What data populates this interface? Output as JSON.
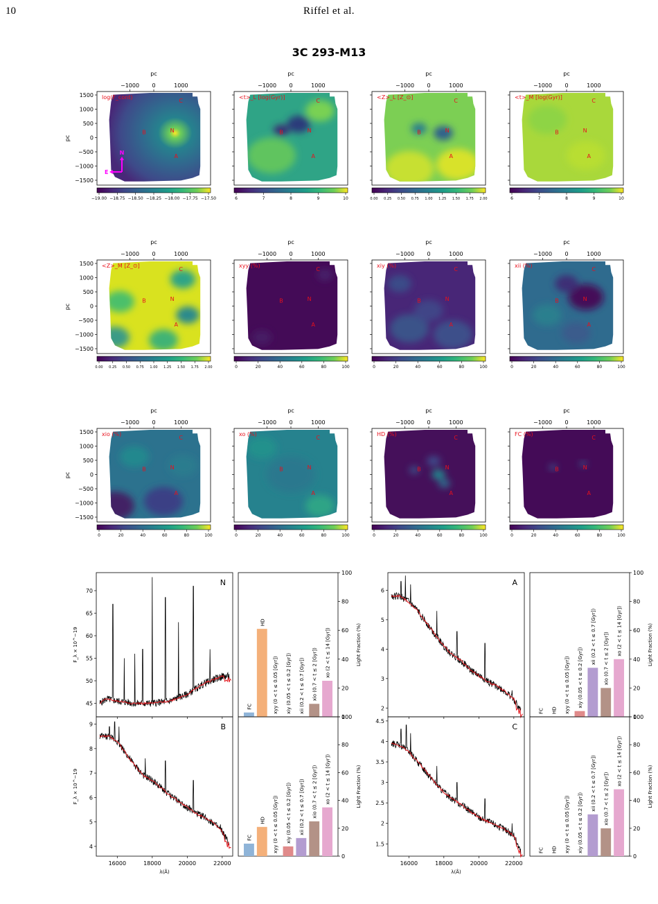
{
  "page": {
    "number": "10",
    "running_head": "Riffel et al.",
    "figure_title": "3C 293-M13"
  },
  "maps": {
    "top_axis_label": "pc",
    "left_axis_label": "pc",
    "top_ticks": [
      "−1000",
      "0",
      "1000"
    ],
    "left_ticks": [
      "1500",
      "1000",
      "500",
      "0",
      "−500",
      "−1000",
      "−1500"
    ],
    "region_labels": [
      "N",
      "B",
      "A",
      "C"
    ],
    "compass": {
      "north": "N",
      "east": "E"
    },
    "label_color": "#e8101c",
    "compass_color": "#ff00ff",
    "panels": [
      {
        "label": "log(F_cont)",
        "cbar_ticks": [
          "−19.00",
          "−18.75",
          "−18.50",
          "−18.25",
          "−18.00",
          "−17.75",
          "−17.50"
        ]
      },
      {
        "label": "<t>_L [log(Gyr)]",
        "cbar_ticks": [
          "6",
          "7",
          "8",
          "9",
          "10"
        ]
      },
      {
        "label": "<Z>_L [Z_⊙]",
        "cbar_ticks": [
          "0.00",
          "0.25",
          "0.50",
          "0.75",
          "1.00",
          "1.25",
          "1.50",
          "1.75",
          "2.00"
        ]
      },
      {
        "label": "<t>_M [log(Gyr)]",
        "cbar_ticks": [
          "6",
          "7",
          "8",
          "9",
          "10"
        ]
      },
      {
        "label": "<Z>_M [Z_⊙]",
        "cbar_ticks": [
          "0.00",
          "0.25",
          "0.50",
          "0.75",
          "1.00",
          "1.25",
          "1.50",
          "1.75",
          "2.00"
        ]
      },
      {
        "label": "xyy (%)",
        "cbar_ticks": [
          "0",
          "20",
          "40",
          "60",
          "80",
          "100"
        ]
      },
      {
        "label": "xiy (%)",
        "cbar_ticks": [
          "0",
          "20",
          "40",
          "60",
          "80",
          "100"
        ]
      },
      {
        "label": "xii (%)",
        "cbar_ticks": [
          "0",
          "20",
          "40",
          "60",
          "80",
          "100"
        ]
      },
      {
        "label": "xio (%)",
        "cbar_ticks": [
          "0",
          "20",
          "40",
          "60",
          "80",
          "100"
        ]
      },
      {
        "label": "xo (%)",
        "cbar_ticks": [
          "0",
          "20",
          "40",
          "60",
          "80",
          "100"
        ]
      },
      {
        "label": "HD (%)",
        "cbar_ticks": [
          "0",
          "20",
          "40",
          "60",
          "80",
          "100"
        ]
      },
      {
        "label": "FC (%)",
        "cbar_ticks": [
          "0",
          "20",
          "40",
          "60",
          "80",
          "100"
        ]
      }
    ]
  },
  "chart_data": [
    {
      "type": "line",
      "panel": "N",
      "xlabel": "λ(Å)",
      "ylabel": "F_λ × 10^−19",
      "xlim": [
        14800,
        22600
      ],
      "ylim": [
        42,
        74
      ],
      "x_ticks": [
        16000,
        18000,
        20000,
        22000
      ],
      "y_ticks": [
        45,
        50,
        55,
        60,
        65,
        70
      ],
      "continuum_points": [
        [
          15000,
          45
        ],
        [
          15400,
          46
        ],
        [
          16000,
          45.5
        ],
        [
          17000,
          45
        ],
        [
          18000,
          45
        ],
        [
          19000,
          45.5
        ],
        [
          20000,
          47
        ],
        [
          21000,
          49.5
        ],
        [
          22000,
          51
        ],
        [
          22400,
          51
        ]
      ],
      "emission_lines": [
        [
          15750,
          67
        ],
        [
          16400,
          55
        ],
        [
          17000,
          56
        ],
        [
          17450,
          57
        ],
        [
          18000,
          73
        ],
        [
          18750,
          68.5
        ],
        [
          19500,
          63
        ],
        [
          20350,
          71
        ],
        [
          21300,
          57
        ],
        [
          21900,
          50
        ]
      ],
      "model_end_wiggle": true
    },
    {
      "type": "bar",
      "panel": "N",
      "ylabel": "Light Fraction (%)",
      "ylim": [
        0,
        100
      ],
      "y_ticks": [
        0,
        20,
        40,
        60,
        80,
        100
      ],
      "categories": [
        "FC",
        "HD",
        "xyy (0 < t ≤ 0.05 [Gyr])",
        "xiy (0.05 < t ≤ 0.2 [Gyr])",
        "xii (0.2 < t ≤ 0.7 [Gyr])",
        "xio (0.7 < t ≤ 2 [Gyr])",
        "xo (2 < t ≤ 14 [Gyr])"
      ],
      "values": [
        3,
        61,
        0,
        0,
        0,
        9,
        25
      ],
      "colors": [
        "#8fb4d8",
        "#f4b07a",
        "#d97f7f",
        "#e08a8a",
        "#b39cd0",
        "#b39287",
        "#e6a8cf"
      ]
    },
    {
      "type": "line",
      "panel": "A",
      "xlabel": "λ(Å)",
      "ylabel": "",
      "xlim": [
        14800,
        22600
      ],
      "ylim": [
        1.7,
        6.6
      ],
      "x_ticks": [
        16000,
        18000,
        20000,
        22000
      ],
      "y_ticks": [
        2,
        3,
        4,
        5,
        6
      ],
      "continuum_points": [
        [
          15000,
          5.8
        ],
        [
          15500,
          5.8
        ],
        [
          16000,
          5.6
        ],
        [
          16500,
          5.3
        ],
        [
          17000,
          4.9
        ],
        [
          17500,
          4.5
        ],
        [
          18000,
          4.1
        ],
        [
          18500,
          3.8
        ],
        [
          19000,
          3.6
        ],
        [
          19500,
          3.3
        ],
        [
          20000,
          3.1
        ],
        [
          20500,
          2.9
        ],
        [
          21000,
          2.75
        ],
        [
          21500,
          2.55
        ],
        [
          22000,
          2.3
        ],
        [
          22400,
          1.9
        ]
      ],
      "emission_lines": [
        [
          15550,
          6.3
        ],
        [
          15800,
          6.5
        ],
        [
          16100,
          6.2
        ],
        [
          17600,
          5.3
        ],
        [
          18750,
          4.6
        ],
        [
          20350,
          4.2
        ],
        [
          21900,
          2.6
        ]
      ],
      "model_end_wiggle": true
    },
    {
      "type": "bar",
      "panel": "A",
      "ylabel": "Light Fraction (%)",
      "ylim": [
        0,
        100
      ],
      "y_ticks": [
        0,
        20,
        40,
        60,
        80,
        100
      ],
      "categories": [
        "FC",
        "HD",
        "xyy (0 < t ≤ 0.05 [Gyr])",
        "xiy (0.05 < t ≤ 0.2 [Gyr])",
        "xii (0.2 < t ≤ 0.7 [Gyr])",
        "xio (0.7 < t ≤ 2 [Gyr])",
        "xo (2 < t ≤ 14 [Gyr])"
      ],
      "values": [
        0,
        0,
        0,
        4,
        34,
        20,
        40
      ],
      "colors": [
        "#8fb4d8",
        "#f4b07a",
        "#d97f7f",
        "#e08a8a",
        "#b39cd0",
        "#b39287",
        "#e6a8cf"
      ]
    },
    {
      "type": "line",
      "panel": "B",
      "xlabel": "λ(Å)",
      "ylabel": "F_λ × 10^−19",
      "xlim": [
        14800,
        22600
      ],
      "ylim": [
        3.6,
        9.3
      ],
      "x_ticks": [
        16000,
        18000,
        20000,
        22000
      ],
      "y_ticks": [
        4,
        5,
        6,
        7,
        8,
        9
      ],
      "continuum_points": [
        [
          15000,
          8.5
        ],
        [
          15500,
          8.5
        ],
        [
          16000,
          8.3
        ],
        [
          16500,
          7.8
        ],
        [
          17000,
          7.3
        ],
        [
          17500,
          6.9
        ],
        [
          18000,
          6.7
        ],
        [
          18500,
          6.4
        ],
        [
          19000,
          6.1
        ],
        [
          19500,
          5.85
        ],
        [
          20000,
          5.6
        ],
        [
          20500,
          5.35
        ],
        [
          21000,
          5.2
        ],
        [
          21500,
          4.95
        ],
        [
          22000,
          4.6
        ],
        [
          22400,
          4.1
        ]
      ],
      "emission_lines": [
        [
          15550,
          8.9
        ],
        [
          15850,
          9.1
        ],
        [
          16100,
          8.9
        ],
        [
          17600,
          7.6
        ],
        [
          18750,
          7.5
        ],
        [
          20350,
          6.7
        ],
        [
          21900,
          4.9
        ]
      ],
      "model_end_wiggle": true
    },
    {
      "type": "bar",
      "panel": "B",
      "ylabel": "Light Fraction (%)",
      "ylim": [
        0,
        100
      ],
      "y_ticks": [
        0,
        20,
        40,
        60,
        80,
        100
      ],
      "categories": [
        "FC",
        "HD",
        "xyy (0 < t ≤ 0.05 [Gyr])",
        "xiy (0.05 < t ≤ 0.2 [Gyr])",
        "xii (0.2 < t ≤ 0.7 [Gyr])",
        "xio (0.7 < t ≤ 2 [Gyr])",
        "xo (2 < t ≤ 14 [Gyr])"
      ],
      "values": [
        9,
        21,
        0,
        7,
        13,
        25,
        35
      ],
      "colors": [
        "#8fb4d8",
        "#f4b07a",
        "#d97f7f",
        "#e08a8a",
        "#b39cd0",
        "#b39287",
        "#e6a8cf"
      ]
    },
    {
      "type": "line",
      "panel": "C",
      "xlabel": "λ(Å)",
      "ylabel": "",
      "xlim": [
        14800,
        22600
      ],
      "ylim": [
        1.2,
        4.6
      ],
      "x_ticks": [
        16000,
        18000,
        20000,
        22000
      ],
      "y_ticks": [
        1.5,
        2.0,
        2.5,
        3.0,
        3.5,
        4.0,
        4.5
      ],
      "continuum_points": [
        [
          15000,
          3.95
        ],
        [
          15500,
          3.9
        ],
        [
          16000,
          3.75
        ],
        [
          16500,
          3.5
        ],
        [
          17000,
          3.25
        ],
        [
          17500,
          3.0
        ],
        [
          18000,
          2.75
        ],
        [
          18500,
          2.6
        ],
        [
          19000,
          2.45
        ],
        [
          19500,
          2.3
        ],
        [
          20000,
          2.15
        ],
        [
          20500,
          2.05
        ],
        [
          21000,
          1.95
        ],
        [
          21500,
          1.85
        ],
        [
          22000,
          1.7
        ],
        [
          22400,
          1.3
        ]
      ],
      "emission_lines": [
        [
          15550,
          4.3
        ],
        [
          15850,
          4.4
        ],
        [
          16100,
          4.2
        ],
        [
          17600,
          3.4
        ],
        [
          18750,
          3.0
        ],
        [
          20350,
          2.6
        ],
        [
          21900,
          2.0
        ]
      ],
      "model_end_wiggle": true
    },
    {
      "type": "bar",
      "panel": "C",
      "ylabel": "Light Fraction (%)",
      "ylim": [
        0,
        100
      ],
      "y_ticks": [
        0,
        20,
        40,
        60,
        80,
        100
      ],
      "categories": [
        "FC",
        "HD",
        "xyy (0 < t ≤ 0.05 [Gyr])",
        "xiy (0.05 < t ≤ 0.2 [Gyr])",
        "xii (0.2 < t ≤ 0.7 [Gyr])",
        "xio (0.7 < t ≤ 2 [Gyr])",
        "xo (2 < t ≤ 14 [Gyr])"
      ],
      "values": [
        0,
        0,
        0,
        0,
        30,
        20,
        48
      ],
      "colors": [
        "#8fb4d8",
        "#f4b07a",
        "#d97f7f",
        "#e08a8a",
        "#b39cd0",
        "#b39287",
        "#e6a8cf"
      ]
    }
  ]
}
